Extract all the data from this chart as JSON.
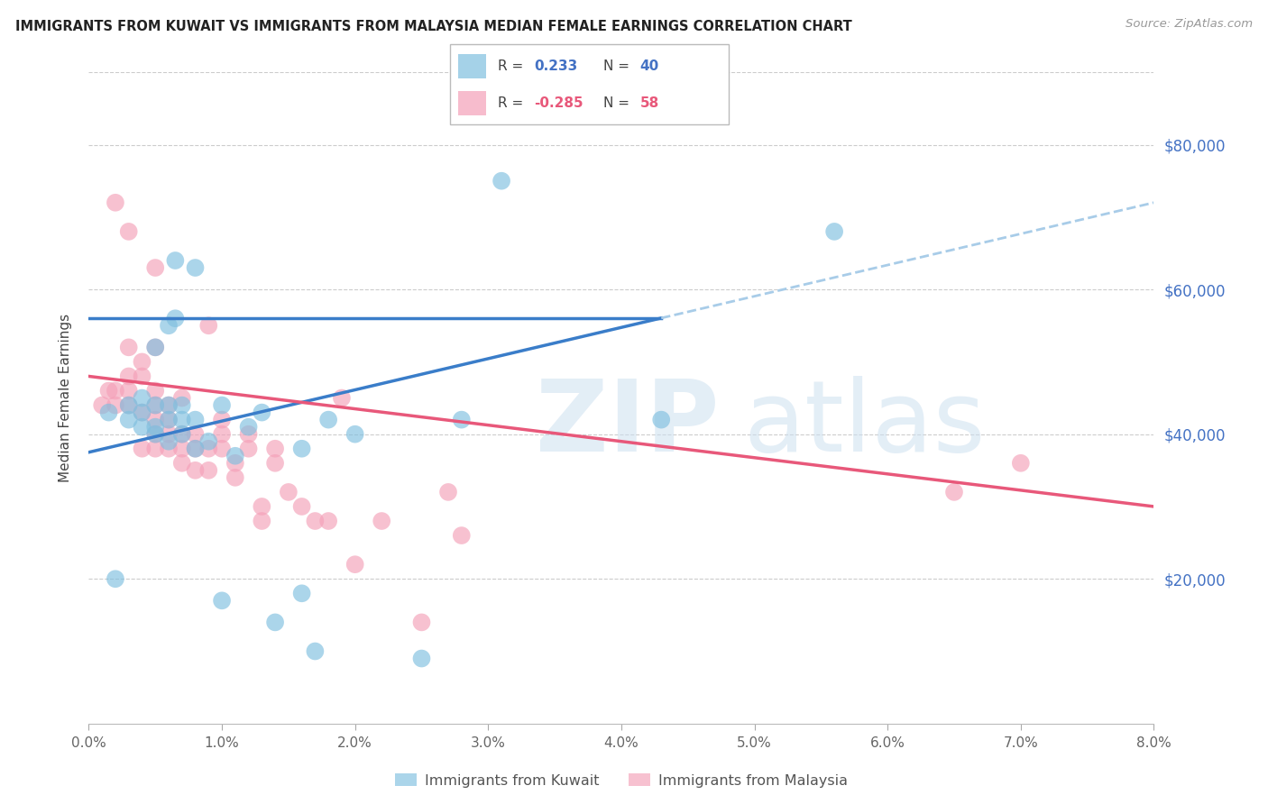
{
  "title": "IMMIGRANTS FROM KUWAIT VS IMMIGRANTS FROM MALAYSIA MEDIAN FEMALE EARNINGS CORRELATION CHART",
  "source": "Source: ZipAtlas.com",
  "ylabel": "Median Female Earnings",
  "yticks": [
    20000,
    40000,
    60000,
    80000
  ],
  "ytick_labels": [
    "$20,000",
    "$40,000",
    "$60,000",
    "$80,000"
  ],
  "xlim": [
    0.0,
    0.08
  ],
  "ylim": [
    0,
    90000
  ],
  "kuwait_R": 0.233,
  "kuwait_N": 40,
  "malaysia_R": -0.285,
  "malaysia_N": 58,
  "kuwait_color": "#7fbfdf",
  "malaysia_color": "#f4a0b8",
  "kuwait_line_color": "#3a7dc9",
  "malaysia_line_color": "#e8587a",
  "kuwait_dashed_color": "#a8cce8",
  "background_color": "#ffffff",
  "legend_kuwait_label": "Immigrants from Kuwait",
  "legend_malaysia_label": "Immigrants from Malaysia",
  "kuwait_line_x0": 0.0,
  "kuwait_line_y0": 37500,
  "kuwait_line_x1": 0.08,
  "kuwait_line_y1": 72000,
  "kuwait_solid_xend": 0.043,
  "malaysia_line_x0": 0.0,
  "malaysia_line_y0": 48000,
  "malaysia_line_x1": 0.08,
  "malaysia_line_y1": 30000,
  "kuwait_scatter_x": [
    0.0015,
    0.002,
    0.003,
    0.003,
    0.004,
    0.004,
    0.004,
    0.005,
    0.005,
    0.005,
    0.005,
    0.006,
    0.006,
    0.006,
    0.006,
    0.0065,
    0.0065,
    0.007,
    0.007,
    0.007,
    0.008,
    0.008,
    0.008,
    0.009,
    0.01,
    0.01,
    0.011,
    0.012,
    0.013,
    0.014,
    0.016,
    0.016,
    0.017,
    0.018,
    0.02,
    0.025,
    0.028,
    0.031,
    0.043,
    0.056
  ],
  "kuwait_scatter_y": [
    43000,
    20000,
    42000,
    44000,
    41000,
    43000,
    45000,
    40000,
    41000,
    44000,
    52000,
    39000,
    42000,
    44000,
    55000,
    56000,
    64000,
    40000,
    42000,
    44000,
    38000,
    42000,
    63000,
    39000,
    44000,
    17000,
    37000,
    41000,
    43000,
    14000,
    18000,
    38000,
    10000,
    42000,
    40000,
    9000,
    42000,
    75000,
    42000,
    68000
  ],
  "malaysia_scatter_x": [
    0.001,
    0.0015,
    0.002,
    0.002,
    0.002,
    0.003,
    0.003,
    0.003,
    0.003,
    0.003,
    0.004,
    0.004,
    0.004,
    0.004,
    0.005,
    0.005,
    0.005,
    0.005,
    0.005,
    0.005,
    0.005,
    0.006,
    0.006,
    0.006,
    0.006,
    0.007,
    0.007,
    0.007,
    0.007,
    0.008,
    0.008,
    0.008,
    0.009,
    0.009,
    0.009,
    0.01,
    0.01,
    0.01,
    0.011,
    0.011,
    0.012,
    0.012,
    0.013,
    0.013,
    0.014,
    0.014,
    0.015,
    0.016,
    0.017,
    0.018,
    0.019,
    0.02,
    0.022,
    0.025,
    0.027,
    0.028,
    0.065,
    0.07
  ],
  "malaysia_scatter_y": [
    44000,
    46000,
    44000,
    46000,
    72000,
    44000,
    46000,
    48000,
    52000,
    68000,
    38000,
    43000,
    48000,
    50000,
    38000,
    40000,
    42000,
    44000,
    46000,
    52000,
    63000,
    38000,
    40000,
    42000,
    44000,
    36000,
    38000,
    40000,
    45000,
    35000,
    38000,
    40000,
    35000,
    38000,
    55000,
    38000,
    40000,
    42000,
    34000,
    36000,
    38000,
    40000,
    28000,
    30000,
    36000,
    38000,
    32000,
    30000,
    28000,
    28000,
    45000,
    22000,
    28000,
    14000,
    32000,
    26000,
    32000,
    36000
  ]
}
